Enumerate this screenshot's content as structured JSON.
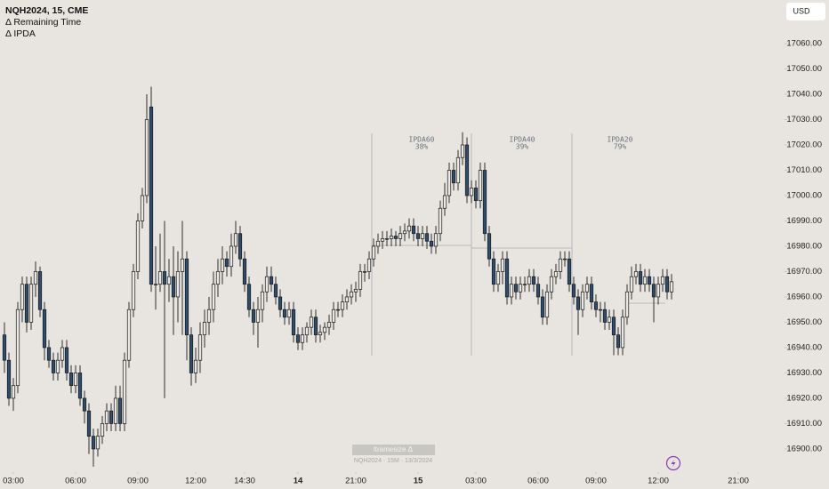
{
  "chart_data": {
    "type": "candlestick",
    "title": "NQH2024, 15, CME",
    "indicators": [
      "Δ Remaining Time",
      "Δ IPDA"
    ],
    "currency": "USD",
    "ipda": [
      {
        "label": "IPDA60",
        "pct": "38%"
      },
      {
        "label": "IPDA40",
        "pct": "39%"
      },
      {
        "label": "IPDA20",
        "pct": "79%"
      }
    ],
    "watermark": [
      "ltramesize Δ",
      "NQH2024 · 15M · 13/3/2024"
    ],
    "up_color": "#ebe8e3",
    "down_color": "#2e4c6b",
    "outline_color": "#1a1a1a",
    "open": [
      16945,
      16935,
      16920,
      16925,
      16955,
      16965,
      16950,
      16965,
      16970,
      16955,
      16940,
      16935,
      16930,
      16935,
      16940,
      16930,
      16925,
      16930,
      16920,
      16915,
      16905,
      16900,
      16905,
      16910,
      16915,
      16910,
      16920,
      16910,
      16935,
      16955,
      16970,
      16990,
      17000,
      17035,
      16965,
      16965,
      16970,
      16965,
      16968,
      16960,
      16970,
      16975,
      16945,
      16930,
      16935,
      16945,
      16950,
      16955,
      16965,
      16970,
      16975,
      16972,
      16980,
      16985,
      16975,
      16965,
      16955,
      16950,
      16955,
      16962,
      16968,
      16965,
      16960,
      16955,
      16952,
      16955,
      16945,
      16942,
      16945,
      16948,
      16952,
      16945,
      16946,
      16948,
      16950,
      16955,
      16955,
      16958,
      16960,
      16962,
      16963,
      16970,
      16970,
      16975,
      16980,
      16982,
      16983,
      16983,
      16984,
      16983,
      16985,
      16986,
      16988,
      16985,
      16983,
      16985,
      16982,
      16980,
      16985,
      16995,
      17000,
      17010,
      17005,
      17015,
      17020,
      17000,
      17003,
      16998,
      17010,
      16985,
      16975,
      16965,
      16970,
      16975,
      16960,
      16965,
      16962,
      16965,
      16965,
      16968,
      16965,
      16960,
      16952,
      16962,
      16968,
      16970,
      16975,
      16975,
      16965,
      16960,
      16955,
      16962,
      16965,
      16958,
      16955,
      16955,
      16950,
      16952,
      16945,
      16940,
      16952,
      16962,
      16968,
      16970,
      16965,
      16968,
      16965,
      16960,
      16965,
      16968,
      16962
    ],
    "high": [
      16950,
      16938,
      16928,
      16958,
      16968,
      16968,
      16968,
      16974,
      16972,
      16958,
      16943,
      16938,
      16938,
      16943,
      16943,
      16933,
      16933,
      16933,
      16923,
      16918,
      16908,
      16908,
      16913,
      16918,
      16918,
      16925,
      16925,
      16938,
      16958,
      16973,
      16993,
      17003,
      17040,
      17043,
      16980,
      16985,
      16990,
      16975,
      16980,
      16978,
      16990,
      16978,
      16948,
      16940,
      16950,
      16955,
      16960,
      16970,
      16975,
      16980,
      16978,
      16985,
      16990,
      16988,
      16978,
      16968,
      16958,
      16960,
      16965,
      16972,
      16972,
      16968,
      16963,
      16958,
      16958,
      16958,
      16948,
      16948,
      16950,
      16955,
      16955,
      16949,
      16950,
      16953,
      16958,
      16958,
      16961,
      16963,
      16965,
      16966,
      16973,
      16973,
      16978,
      16983,
      16985,
      16986,
      16986,
      16987,
      16986,
      16988,
      16989,
      16991,
      16991,
      16988,
      16988,
      16988,
      16985,
      16988,
      16998,
      17005,
      17013,
      17013,
      17018,
      17025,
      17023,
      17006,
      17006,
      17013,
      17013,
      16988,
      16978,
      16973,
      16978,
      16978,
      16968,
      16968,
      16968,
      16968,
      16971,
      16971,
      16968,
      16963,
      16965,
      16971,
      16973,
      16978,
      16978,
      16978,
      16968,
      16963,
      16965,
      16968,
      16968,
      16961,
      16958,
      16958,
      16955,
      16955,
      16948,
      16955,
      16965,
      16972,
      16973,
      16973,
      16971,
      16971,
      16968,
      16968,
      16971,
      16971,
      16969
    ],
    "low": [
      16930,
      16917,
      16915,
      16922,
      16950,
      16946,
      16947,
      16960,
      16952,
      16935,
      16932,
      16927,
      16927,
      16932,
      16927,
      16922,
      16922,
      16917,
      16910,
      16898,
      16893,
      16897,
      16902,
      16907,
      16907,
      16907,
      16907,
      16907,
      16932,
      16952,
      16967,
      16987,
      16997,
      16962,
      16955,
      16962,
      16920,
      16958,
      16945,
      16950,
      16945,
      16935,
      16925,
      16926,
      16930,
      16940,
      16945,
      16950,
      16960,
      16965,
      16968,
      16968,
      16977,
      16972,
      16962,
      16952,
      16945,
      16940,
      16950,
      16958,
      16962,
      16957,
      16952,
      16949,
      16949,
      16942,
      16939,
      16939,
      16942,
      16945,
      16942,
      16942,
      16943,
      16945,
      16947,
      16952,
      16952,
      16955,
      16957,
      16958,
      16960,
      16966,
      16967,
      16972,
      16977,
      16979,
      16980,
      16980,
      16980,
      16980,
      16982,
      16983,
      16982,
      16980,
      16980,
      16979,
      16977,
      16977,
      16982,
      16992,
      16997,
      17002,
      17002,
      17012,
      16997,
      16997,
      16995,
      16995,
      16982,
      16972,
      16962,
      16962,
      16965,
      16957,
      16957,
      16959,
      16959,
      16962,
      16962,
      16962,
      16957,
      16949,
      16949,
      16959,
      16965,
      16967,
      16972,
      16962,
      16957,
      16945,
      16952,
      16959,
      16955,
      16952,
      16950,
      16947,
      16947,
      16937,
      16937,
      16937,
      16949,
      16959,
      16965,
      16962,
      16962,
      16962,
      16950,
      16957,
      16962,
      16959,
      16959
    ],
    "close": [
      16935,
      16920,
      16925,
      16955,
      16965,
      16950,
      16965,
      16970,
      16955,
      16940,
      16935,
      16930,
      16935,
      16940,
      16930,
      16925,
      16930,
      16920,
      16915,
      16905,
      16900,
      16905,
      16910,
      16915,
      16910,
      16920,
      16910,
      16935,
      16955,
      16970,
      16990,
      17000,
      17030,
      16965,
      16965,
      16970,
      16965,
      16968,
      16960,
      16970,
      16975,
      16945,
      16930,
      16935,
      16945,
      16950,
      16955,
      16965,
      16970,
      16975,
      16972,
      16980,
      16985,
      16975,
      16965,
      16955,
      16950,
      16955,
      16962,
      16968,
      16965,
      16960,
      16955,
      16952,
      16955,
      16945,
      16942,
      16945,
      16948,
      16952,
      16945,
      16946,
      16948,
      16950,
      16955,
      16955,
      16958,
      16960,
      16962,
      16963,
      16970,
      16970,
      16975,
      16980,
      16982,
      16983,
      16983,
      16984,
      16983,
      16985,
      16986,
      16988,
      16985,
      16983,
      16985,
      16982,
      16980,
      16985,
      16995,
      17000,
      17010,
      17005,
      17015,
      17020,
      17000,
      17003,
      16998,
      17010,
      16985,
      16975,
      16965,
      16970,
      16975,
      16960,
      16965,
      16962,
      16965,
      16965,
      16968,
      16965,
      16960,
      16952,
      16962,
      16968,
      16970,
      16975,
      16975,
      16965,
      16960,
      16955,
      16962,
      16965,
      16958,
      16955,
      16955,
      16950,
      16952,
      16945,
      16940,
      16952,
      16962,
      16968,
      16970,
      16965,
      16968,
      16965,
      16960,
      16965,
      16968,
      16962,
      16966
    ],
    "xlim": [
      -1,
      175
    ],
    "xticks": [
      {
        "value": 2,
        "label": "03:00"
      },
      {
        "value": 16,
        "label": "06:00"
      },
      {
        "value": 30,
        "label": "09:00"
      },
      {
        "value": 43,
        "label": "12:00"
      },
      {
        "value": 54,
        "label": "14:30"
      },
      {
        "value": 66,
        "label": "14"
      },
      {
        "value": 79,
        "label": "21:00"
      },
      {
        "value": 93,
        "label": "15"
      },
      {
        "value": 106,
        "label": "03:00"
      },
      {
        "value": 120,
        "label": "06:00"
      },
      {
        "value": 133,
        "label": "09:00"
      },
      {
        "value": 147,
        "label": "12:00"
      },
      {
        "value": 165,
        "label": "21:00"
      }
    ],
    "ylim": [
      16891.2,
      17077.2
    ],
    "yticks": [
      {
        "value": 16900,
        "label": "16900.00"
      },
      {
        "value": 16910,
        "label": "16910.00"
      },
      {
        "value": 16920,
        "label": "16920.00"
      },
      {
        "value": 16930,
        "label": "16930.00"
      },
      {
        "value": 16940,
        "label": "16940.00"
      },
      {
        "value": 16950,
        "label": "16950.00"
      },
      {
        "value": 16960,
        "label": "16960.00"
      },
      {
        "value": 16970,
        "label": "16970.00"
      },
      {
        "value": 16980,
        "label": "16980.00"
      },
      {
        "value": 16990,
        "label": "16990.00"
      },
      {
        "value": 17000,
        "label": "17000.00"
      },
      {
        "value": 17010,
        "label": "17010.00"
      },
      {
        "value": 17020,
        "label": "17020.00"
      },
      {
        "value": 17030,
        "label": "17030.00"
      },
      {
        "value": 17040,
        "label": "17040.00"
      },
      {
        "value": 17050,
        "label": "17050.00"
      },
      {
        "value": 17060,
        "label": "17060.00"
      }
    ]
  }
}
